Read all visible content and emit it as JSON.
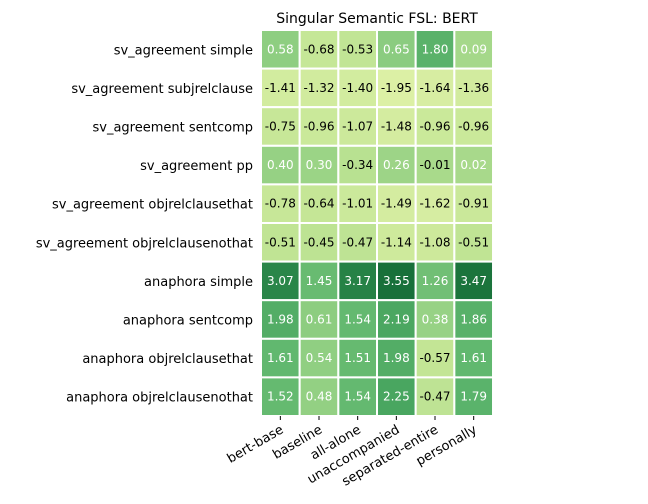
{
  "chart_data": {
    "type": "heatmap",
    "title": "Singular Semantic FSL: BERT",
    "xlabel": "",
    "ylabel": "",
    "columns": [
      "bert-base",
      "baseline",
      "all-alone",
      "unaccompanied",
      "separated-entire",
      "personally"
    ],
    "rows": [
      "sv_agreement simple",
      "sv_agreement subjrelclause",
      "sv_agreement sentcomp",
      "sv_agreement pp",
      "sv_agreement objrelclausethat",
      "sv_agreement objrelclausenothat",
      "anaphora simple",
      "anaphora sentcomp",
      "anaphora objrelclausethat",
      "anaphora objrelclausenothat"
    ],
    "values": [
      [
        0.58,
        -0.68,
        -0.53,
        0.65,
        1.8,
        0.09
      ],
      [
        -1.41,
        -1.32,
        -1.4,
        -1.95,
        -1.64,
        -1.36
      ],
      [
        -0.75,
        -0.96,
        -1.07,
        -1.48,
        -0.96,
        -0.96
      ],
      [
        0.4,
        0.3,
        -0.34,
        0.26,
        -0.01,
        0.02
      ],
      [
        -0.78,
        -0.64,
        -1.01,
        -1.49,
        -1.62,
        -0.91
      ],
      [
        -0.51,
        -0.45,
        -0.47,
        -1.14,
        -1.08,
        -0.51
      ],
      [
        3.07,
        1.45,
        3.17,
        3.55,
        1.26,
        3.47
      ],
      [
        1.98,
        0.61,
        1.54,
        2.19,
        0.38,
        1.86
      ],
      [
        1.61,
        0.54,
        1.51,
        1.98,
        -0.57,
        1.61
      ],
      [
        1.52,
        0.48,
        1.54,
        2.25,
        -0.47,
        1.79
      ]
    ],
    "colormap": "YlGn",
    "vmin": -2.0,
    "vmax": 3.6,
    "grid": false,
    "legend": "none"
  }
}
